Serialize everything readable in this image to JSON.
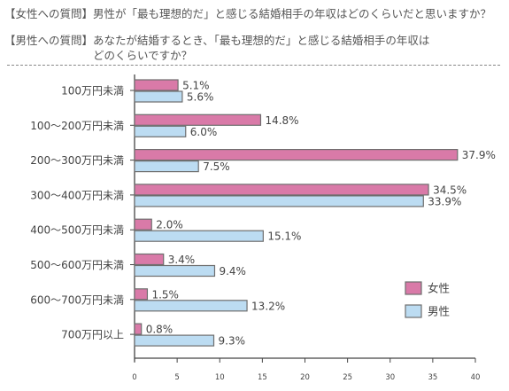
{
  "questions": [
    {
      "tag": "【女性への質問】",
      "text": "男性が「最も理想的だ」と感じる結婚相手の年収はどのくらいだと思いますか？"
    },
    {
      "tag": "【男性への質問】",
      "text": "あなたが結婚するとき、「最も理想的だ」と感じる結婚相手の年収は\nどのくらいですか？"
    }
  ],
  "colors": {
    "female": "#d97aa8",
    "male": "#bcdcf2",
    "axis": "#444444",
    "bar_stroke": "#6e6e6e"
  },
  "chart_data": {
    "type": "bar",
    "orientation": "horizontal",
    "categories": [
      "100万円未満",
      "100～200万円未満",
      "200～300万円未満",
      "300～400万円未満",
      "400～500万円未満",
      "500～600万円未満",
      "600～700万円未満",
      "700万円以上"
    ],
    "series": [
      {
        "name": "女性",
        "values": [
          5.1,
          14.8,
          37.9,
          34.5,
          2.0,
          3.4,
          1.5,
          0.8
        ]
      },
      {
        "name": "男性",
        "values": [
          5.6,
          6.0,
          7.5,
          33.9,
          15.1,
          9.4,
          13.2,
          9.3
        ]
      }
    ],
    "value_suffix": "%",
    "xlim": [
      0,
      40
    ],
    "xticks": [
      0,
      5,
      10,
      15,
      20,
      25,
      30,
      35,
      40
    ],
    "legend_position": "bottom-right",
    "grid": false
  }
}
